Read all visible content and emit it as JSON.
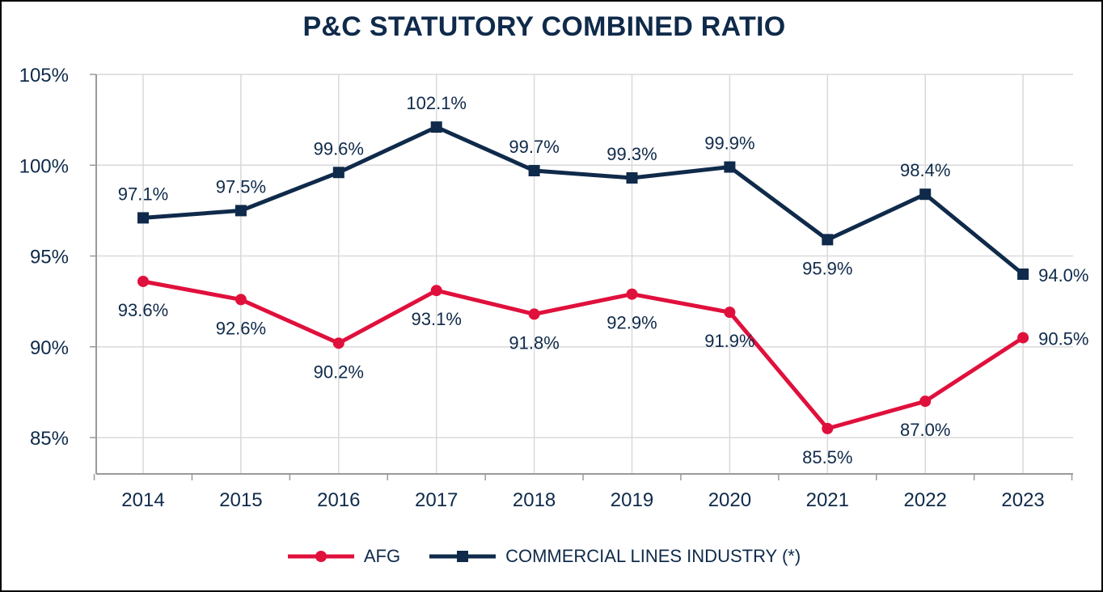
{
  "chart_data": {
    "type": "line",
    "title": "P&C STATUTORY COMBINED RATIO",
    "xlabel": "",
    "ylabel": "",
    "categories": [
      "2014",
      "2015",
      "2016",
      "2017",
      "2018",
      "2019",
      "2020",
      "2021",
      "2022",
      "2023"
    ],
    "ylim": [
      83,
      105
    ],
    "yticks": [
      85,
      90,
      95,
      100,
      105
    ],
    "ytick_labels": [
      "85%",
      "90%",
      "95%",
      "100%",
      "105%"
    ],
    "grid": true,
    "legend_position": "bottom",
    "series": [
      {
        "name": "AFG",
        "marker": "circle",
        "color": "#e0103c",
        "values": [
          93.6,
          92.6,
          90.2,
          93.1,
          91.8,
          92.9,
          91.9,
          85.5,
          87.0,
          90.5
        ],
        "labels": [
          "93.6%",
          "92.6%",
          "90.2%",
          "93.1%",
          "91.8%",
          "92.9%",
          "91.9%",
          "85.5%",
          "87.0%",
          "90.5%"
        ],
        "label_pos": [
          "below",
          "below",
          "below",
          "below",
          "below",
          "below",
          "below",
          "below",
          "below",
          "right"
        ]
      },
      {
        "name": "COMMERCIAL LINES INDUSTRY (*)",
        "marker": "square",
        "color": "#0f2a4a",
        "values": [
          97.1,
          97.5,
          99.6,
          102.1,
          99.7,
          99.3,
          99.9,
          95.9,
          98.4,
          94.0
        ],
        "labels": [
          "97.1%",
          "97.5%",
          "99.6%",
          "102.1%",
          "99.7%",
          "99.3%",
          "99.9%",
          "95.9%",
          "98.4%",
          "94.0%"
        ],
        "label_pos": [
          "above",
          "above",
          "above",
          "above",
          "above",
          "above",
          "above",
          "below",
          "above",
          "right"
        ]
      }
    ]
  }
}
